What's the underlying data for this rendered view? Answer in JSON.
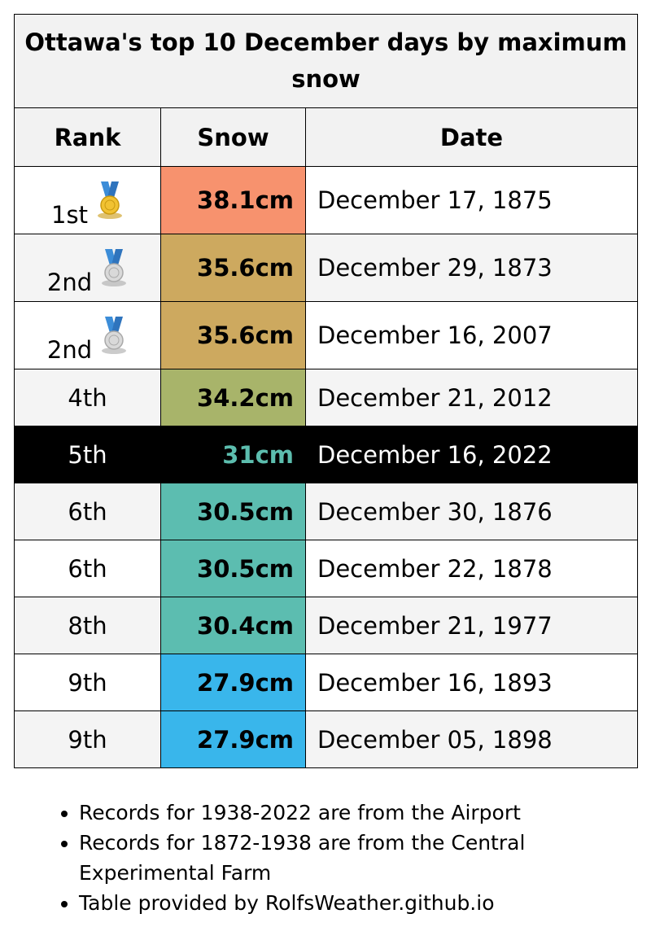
{
  "title": "Ottawa's top 10 December days by maximum snow",
  "columns": {
    "rank": "Rank",
    "snow": "Snow",
    "date": "Date"
  },
  "rows": [
    {
      "rank": "1st",
      "snow": "38.1cm",
      "date": "December 17, 1875",
      "medal": "gold-medal-icon",
      "snow_bg": "#f7926e",
      "snow_fg": "#000000",
      "row_bg": "#ffffff",
      "row_fg": "#000000"
    },
    {
      "rank": "2nd",
      "snow": "35.6cm",
      "date": "December 29, 1873",
      "medal": "silver-medal-icon",
      "snow_bg": "#cda95f",
      "snow_fg": "#000000",
      "row_bg": "#f4f4f4",
      "row_fg": "#000000"
    },
    {
      "rank": "2nd",
      "snow": "35.6cm",
      "date": "December 16, 2007",
      "medal": "silver-medal-icon",
      "snow_bg": "#cda95f",
      "snow_fg": "#000000",
      "row_bg": "#ffffff",
      "row_fg": "#000000"
    },
    {
      "rank": "4th",
      "snow": "34.2cm",
      "date": "December 21, 2012",
      "medal": "",
      "snow_bg": "#a8b46a",
      "snow_fg": "#000000",
      "row_bg": "#f4f4f4",
      "row_fg": "#000000"
    },
    {
      "rank": "5th",
      "snow": "31cm",
      "date": "December 16, 2022",
      "medal": "",
      "snow_bg": "#000000",
      "snow_fg": "#5cbdae",
      "row_bg": "#000000",
      "row_fg": "#ffffff"
    },
    {
      "rank": "6th",
      "snow": "30.5cm",
      "date": "December 30, 1876",
      "medal": "",
      "snow_bg": "#5cbdb0",
      "snow_fg": "#000000",
      "row_bg": "#f4f4f4",
      "row_fg": "#000000"
    },
    {
      "rank": "6th",
      "snow": "30.5cm",
      "date": "December 22, 1878",
      "medal": "",
      "snow_bg": "#5cbdb0",
      "snow_fg": "#000000",
      "row_bg": "#ffffff",
      "row_fg": "#000000"
    },
    {
      "rank": "8th",
      "snow": "30.4cm",
      "date": "December 21, 1977",
      "medal": "",
      "snow_bg": "#5cbdb0",
      "snow_fg": "#000000",
      "row_bg": "#f4f4f4",
      "row_fg": "#000000"
    },
    {
      "rank": "9th",
      "snow": "27.9cm",
      "date": "December 16, 1893",
      "medal": "",
      "snow_bg": "#39b6eb",
      "snow_fg": "#000000",
      "row_bg": "#ffffff",
      "row_fg": "#000000"
    },
    {
      "rank": "9th",
      "snow": "27.9cm",
      "date": "December 05, 1898",
      "medal": "",
      "snow_bg": "#39b6eb",
      "snow_fg": "#000000",
      "row_bg": "#f4f4f4",
      "row_fg": "#000000"
    }
  ],
  "notes": [
    "Records for 1938-2022 are from the Airport",
    "Records for 1872-1938 are from the Central Experimental Farm",
    "Table provided by RolfsWeather.github.io"
  ]
}
